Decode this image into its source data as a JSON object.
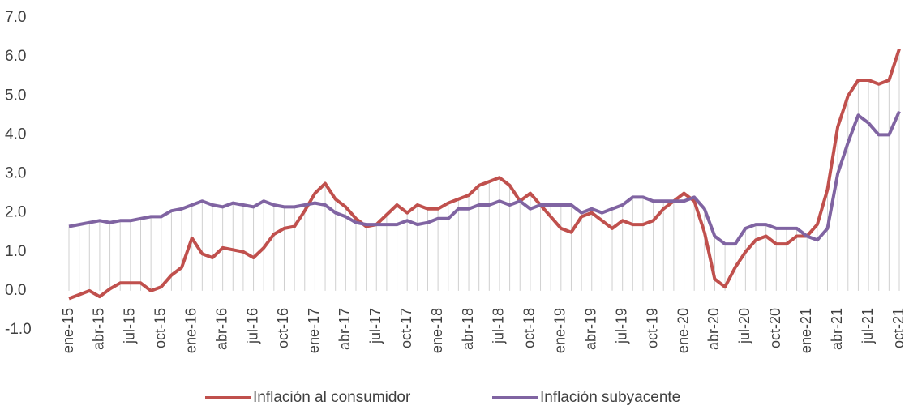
{
  "chart_data": {
    "type": "line",
    "categories": [
      "ene-15",
      null,
      null,
      "abr-15",
      null,
      null,
      "jul-15",
      null,
      null,
      "oct-15",
      null,
      null,
      "ene-16",
      null,
      null,
      "abr-16",
      null,
      null,
      "jul-16",
      null,
      null,
      "oct-16",
      null,
      null,
      "ene-17",
      null,
      null,
      "abr-17",
      null,
      null,
      "jul-17",
      null,
      null,
      "oct-17",
      null,
      null,
      "ene-18",
      null,
      null,
      "abr-18",
      null,
      null,
      "jul-18",
      null,
      null,
      "oct-18",
      null,
      null,
      "ene-19",
      null,
      null,
      "abr-19",
      null,
      null,
      "jul-19",
      null,
      null,
      "oct-19",
      null,
      null,
      "ene-20",
      null,
      null,
      "abr-20",
      null,
      null,
      "jul-20",
      null,
      null,
      "oct-20",
      null,
      null,
      "ene-21",
      null,
      null,
      "abr-21",
      null,
      null,
      "jul-21",
      null,
      null,
      "oct-21"
    ],
    "series": [
      {
        "name": "Inflación al consumidor",
        "color": "#c0504d",
        "values": [
          -0.2,
          -0.1,
          0.0,
          -0.15,
          0.05,
          0.2,
          0.2,
          0.2,
          0.0,
          0.1,
          0.4,
          0.6,
          1.35,
          0.95,
          0.85,
          1.1,
          1.05,
          1.0,
          0.85,
          1.1,
          1.45,
          1.6,
          1.65,
          2.05,
          2.5,
          2.75,
          2.35,
          2.15,
          1.85,
          1.65,
          1.7,
          1.95,
          2.2,
          2.0,
          2.2,
          2.1,
          2.1,
          2.25,
          2.35,
          2.45,
          2.7,
          2.8,
          2.9,
          2.7,
          2.3,
          2.5,
          2.2,
          1.9,
          1.6,
          1.5,
          1.9,
          2.0,
          1.8,
          1.6,
          1.8,
          1.7,
          1.7,
          1.8,
          2.1,
          2.3,
          2.5,
          2.3,
          1.5,
          0.3,
          0.1,
          0.6,
          1.0,
          1.3,
          1.4,
          1.2,
          1.2,
          1.4,
          1.4,
          1.7,
          2.6,
          4.2,
          5.0,
          5.4,
          5.4,
          5.3,
          5.4,
          6.2
        ]
      },
      {
        "name": "Inflación subyacente",
        "color": "#8064a2",
        "values": [
          1.65,
          1.7,
          1.75,
          1.8,
          1.75,
          1.8,
          1.8,
          1.85,
          1.9,
          1.9,
          2.05,
          2.1,
          2.2,
          2.3,
          2.2,
          2.15,
          2.25,
          2.2,
          2.15,
          2.3,
          2.2,
          2.15,
          2.15,
          2.2,
          2.25,
          2.2,
          2.0,
          1.9,
          1.75,
          1.7,
          1.7,
          1.7,
          1.7,
          1.8,
          1.7,
          1.75,
          1.85,
          1.85,
          2.1,
          2.1,
          2.2,
          2.2,
          2.3,
          2.2,
          2.3,
          2.1,
          2.2,
          2.2,
          2.2,
          2.2,
          2.0,
          2.1,
          2.0,
          2.1,
          2.2,
          2.4,
          2.4,
          2.3,
          2.3,
          2.3,
          2.3,
          2.4,
          2.1,
          1.4,
          1.2,
          1.2,
          1.6,
          1.7,
          1.7,
          1.6,
          1.6,
          1.6,
          1.4,
          1.3,
          1.6,
          3.0,
          3.8,
          4.5,
          4.3,
          4.0,
          4.0,
          4.6
        ]
      }
    ],
    "ylim": [
      -1,
      7
    ],
    "yticks": [
      {
        "value": -1,
        "label": "-1.0"
      },
      {
        "value": 0,
        "label": "0.0"
      },
      {
        "value": 1,
        "label": "1.0"
      },
      {
        "value": 2,
        "label": "2.0"
      },
      {
        "value": 3,
        "label": "3.0"
      },
      {
        "value": 4,
        "label": "4.0"
      },
      {
        "value": 5,
        "label": "5.0"
      },
      {
        "value": 6,
        "label": "6.0"
      },
      {
        "value": 7,
        "label": "7.0"
      }
    ],
    "legend": "bottom"
  }
}
